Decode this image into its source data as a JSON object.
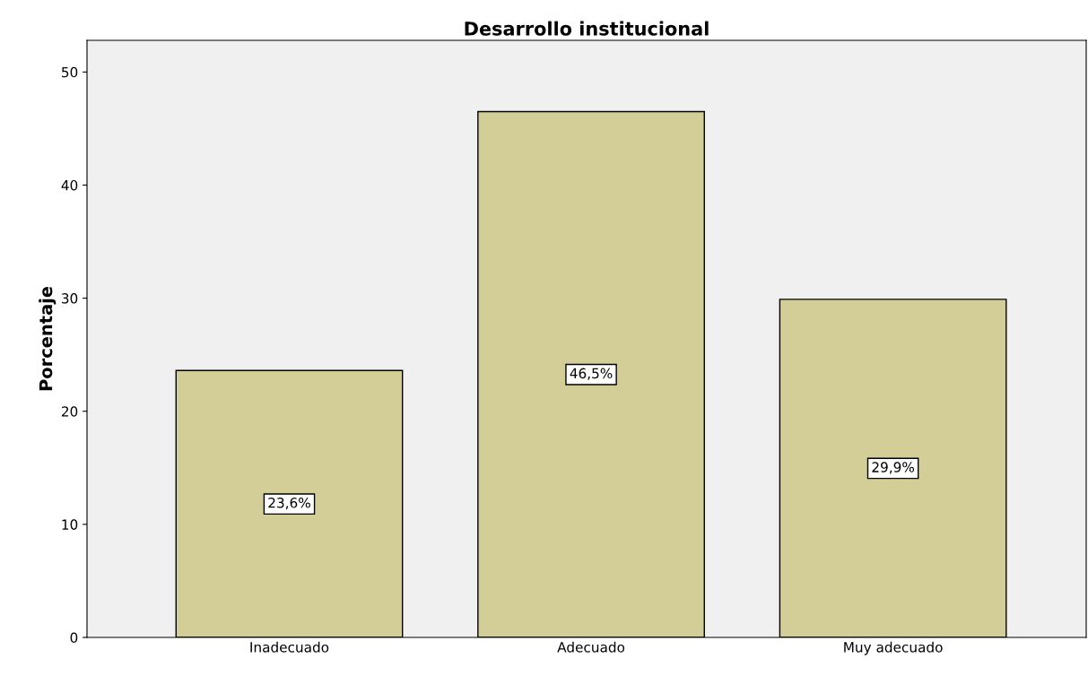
{
  "chart_data": {
    "type": "bar",
    "title": "Desarrollo institucional",
    "ylabel": "Porcentaje",
    "categories": [
      "Inadecuado",
      "Adecuado",
      "Muy adecuado"
    ],
    "values": [
      23.6,
      46.5,
      29.9
    ],
    "color": "#d3ce97",
    "value_labels": [
      "23,6%",
      "46,5%",
      "29,9%"
    ],
    "ylim": [
      0,
      52.8
    ],
    "yticks": [
      0,
      10,
      20,
      30,
      40,
      50
    ],
    "grid": false,
    "legend": false
  }
}
